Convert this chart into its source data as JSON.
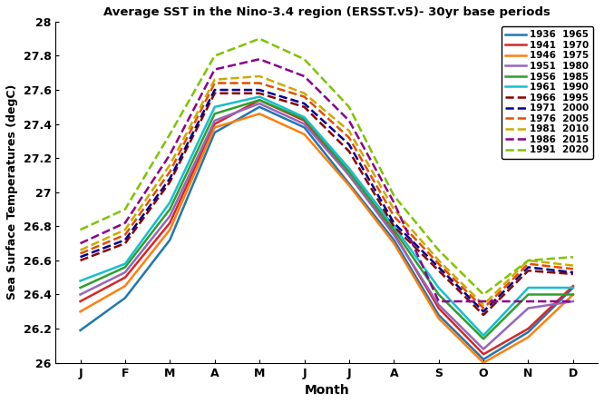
{
  "title": "Average SST in the Nino-3.4 region (ERSST.v5)- 30yr base periods",
  "xlabel": "Month",
  "ylabel": "Sea Surface Temperatures (degC)",
  "months": [
    "J",
    "F",
    "M",
    "A",
    "M",
    "J",
    "J",
    "A",
    "S",
    "O",
    "N",
    "D"
  ],
  "ylim": [
    26.0,
    28.0
  ],
  "yticks": [
    26.0,
    26.2,
    26.4,
    26.6,
    26.8,
    27.0,
    27.2,
    27.4,
    27.6,
    27.8,
    28.0
  ],
  "yticklabels": [
    "26",
    "26.2",
    "26.4",
    "26.6",
    "26.8",
    "27",
    "27.2",
    "27.4",
    "27.6",
    "27.8",
    "28"
  ],
  "series": [
    {
      "label": "1936  1965",
      "color": "#1f77b4",
      "linestyle": "solid",
      "linewidth": 1.8,
      "data": [
        26.19,
        26.38,
        26.72,
        27.35,
        27.5,
        27.38,
        27.05,
        26.72,
        26.28,
        26.02,
        26.18,
        26.44
      ]
    },
    {
      "label": "1941  1970",
      "color": "#d62728",
      "linestyle": "solid",
      "linewidth": 1.8,
      "data": [
        26.36,
        26.5,
        26.82,
        27.4,
        27.54,
        27.42,
        27.1,
        26.76,
        26.32,
        26.05,
        26.2,
        26.45
      ]
    },
    {
      "label": "1946  1975",
      "color": "#ff7f0e",
      "linestyle": "solid",
      "linewidth": 1.8,
      "data": [
        26.3,
        26.45,
        26.78,
        27.38,
        27.46,
        27.34,
        27.04,
        26.7,
        26.26,
        26.0,
        26.15,
        26.4
      ]
    },
    {
      "label": "1951  1980",
      "color": "#9467bd",
      "linestyle": "solid",
      "linewidth": 1.8,
      "data": [
        26.4,
        26.53,
        26.86,
        27.42,
        27.52,
        27.4,
        27.1,
        26.75,
        26.34,
        26.08,
        26.32,
        26.36
      ]
    },
    {
      "label": "1956  1985",
      "color": "#2ca02c",
      "linestyle": "solid",
      "linewidth": 1.8,
      "data": [
        26.44,
        26.56,
        26.9,
        27.46,
        27.54,
        27.43,
        27.12,
        26.78,
        26.4,
        26.14,
        26.4,
        26.4
      ]
    },
    {
      "label": "1961  1990",
      "color": "#17becf",
      "linestyle": "solid",
      "linewidth": 1.8,
      "data": [
        26.48,
        26.58,
        26.94,
        27.5,
        27.56,
        27.44,
        27.14,
        26.8,
        26.44,
        26.16,
        26.44,
        26.44
      ]
    },
    {
      "label": "1966  1995",
      "color": "#8b0000",
      "linestyle": "dashed",
      "linewidth": 1.8,
      "data": [
        26.6,
        26.7,
        27.06,
        27.58,
        27.58,
        27.5,
        27.24,
        26.8,
        26.54,
        26.28,
        26.54,
        26.52
      ]
    },
    {
      "label": "1971  2000",
      "color": "#00008b",
      "linestyle": "dashed",
      "linewidth": 1.8,
      "data": [
        26.62,
        26.72,
        27.08,
        27.6,
        27.6,
        27.52,
        27.28,
        26.82,
        26.56,
        26.3,
        26.56,
        26.53
      ]
    },
    {
      "label": "1976  2005",
      "color": "#e05000",
      "linestyle": "dashed",
      "linewidth": 1.8,
      "data": [
        26.64,
        26.75,
        27.12,
        27.64,
        27.64,
        27.56,
        27.32,
        26.86,
        26.58,
        26.32,
        26.58,
        26.55
      ]
    },
    {
      "label": "1981  2010",
      "color": "#ccaa00",
      "linestyle": "dashed",
      "linewidth": 1.8,
      "data": [
        26.66,
        26.78,
        27.16,
        27.66,
        27.68,
        27.58,
        27.36,
        26.9,
        26.6,
        26.34,
        26.6,
        26.57
      ]
    },
    {
      "label": "1986  2015",
      "color": "#8b008b",
      "linestyle": "dashed",
      "linewidth": 1.8,
      "data": [
        26.7,
        26.82,
        27.22,
        27.72,
        27.78,
        27.68,
        27.42,
        26.94,
        26.36,
        26.36,
        26.36,
        26.36
      ]
    },
    {
      "label": "1991  2020",
      "color": "#7dc400",
      "linestyle": "dashed",
      "linewidth": 1.8,
      "data": [
        26.78,
        26.9,
        27.34,
        27.8,
        27.9,
        27.78,
        27.5,
        26.98,
        26.66,
        26.4,
        26.6,
        26.62
      ]
    }
  ]
}
